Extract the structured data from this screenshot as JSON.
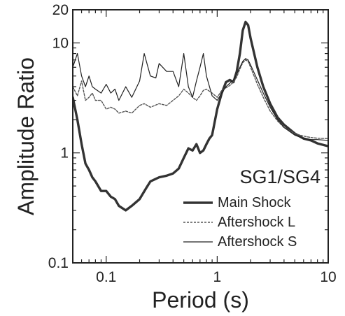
{
  "chart_data": {
    "type": "line",
    "xscale": "log",
    "yscale": "log",
    "xlabel": "Period (s)",
    "ylabel": "Amplitude Ratio",
    "xlim": [
      0.05,
      10
    ],
    "ylim": [
      0.1,
      20
    ],
    "x_ticks": [
      {
        "value": 0.1,
        "label": "0.1"
      },
      {
        "value": 1,
        "label": "1"
      },
      {
        "value": 10,
        "label": "10"
      }
    ],
    "y_ticks": [
      {
        "value": 0.1,
        "label": "0.1"
      },
      {
        "value": 1,
        "label": "1"
      },
      {
        "value": 10,
        "label": "10"
      },
      {
        "value": 20,
        "label": "20"
      }
    ],
    "annotation": "SG1/SG4",
    "grid": false,
    "legend_position": "bottom-right",
    "series": [
      {
        "name": "Main Shock",
        "style": "thick-solid",
        "color": "#333333",
        "points": [
          [
            0.05,
            3.2
          ],
          [
            0.055,
            2.0
          ],
          [
            0.06,
            1.2
          ],
          [
            0.065,
            0.8
          ],
          [
            0.07,
            0.7
          ],
          [
            0.075,
            0.6
          ],
          [
            0.08,
            0.55
          ],
          [
            0.09,
            0.45
          ],
          [
            0.1,
            0.45
          ],
          [
            0.11,
            0.4
          ],
          [
            0.12,
            0.38
          ],
          [
            0.13,
            0.33
          ],
          [
            0.15,
            0.3
          ],
          [
            0.17,
            0.33
          ],
          [
            0.2,
            0.38
          ],
          [
            0.23,
            0.48
          ],
          [
            0.25,
            0.55
          ],
          [
            0.3,
            0.6
          ],
          [
            0.35,
            0.62
          ],
          [
            0.4,
            0.65
          ],
          [
            0.45,
            0.72
          ],
          [
            0.5,
            0.9
          ],
          [
            0.55,
            1.1
          ],
          [
            0.6,
            1.05
          ],
          [
            0.65,
            1.2
          ],
          [
            0.7,
            1.0
          ],
          [
            0.75,
            1.05
          ],
          [
            0.8,
            1.2
          ],
          [
            0.85,
            1.35
          ],
          [
            0.9,
            1.45
          ],
          [
            1.0,
            2.5
          ],
          [
            1.1,
            3.5
          ],
          [
            1.2,
            4.4
          ],
          [
            1.3,
            4.6
          ],
          [
            1.4,
            4.4
          ],
          [
            1.5,
            5.5
          ],
          [
            1.6,
            8.0
          ],
          [
            1.7,
            13.0
          ],
          [
            1.8,
            15.5
          ],
          [
            1.9,
            14.5
          ],
          [
            2.0,
            11.0
          ],
          [
            2.3,
            6.0
          ],
          [
            2.6,
            4.0
          ],
          [
            3.0,
            2.8
          ],
          [
            3.5,
            2.1
          ],
          [
            4.0,
            1.8
          ],
          [
            5.0,
            1.5
          ],
          [
            6.0,
            1.35
          ],
          [
            7.0,
            1.3
          ],
          [
            8.0,
            1.22
          ],
          [
            10.0,
            1.15
          ]
        ]
      },
      {
        "name": "Aftershock L",
        "style": "dashed",
        "color": "#555555",
        "points": [
          [
            0.05,
            4.0
          ],
          [
            0.055,
            3.3
          ],
          [
            0.06,
            4.5
          ],
          [
            0.065,
            3.0
          ],
          [
            0.07,
            3.2
          ],
          [
            0.075,
            3.5
          ],
          [
            0.08,
            3.0
          ],
          [
            0.09,
            3.0
          ],
          [
            0.1,
            2.5
          ],
          [
            0.11,
            2.6
          ],
          [
            0.12,
            2.5
          ],
          [
            0.13,
            2.3
          ],
          [
            0.15,
            2.4
          ],
          [
            0.17,
            2.3
          ],
          [
            0.2,
            2.7
          ],
          [
            0.22,
            2.8
          ],
          [
            0.25,
            2.6
          ],
          [
            0.3,
            2.8
          ],
          [
            0.35,
            2.7
          ],
          [
            0.4,
            3.0
          ],
          [
            0.45,
            3.3
          ],
          [
            0.5,
            3.8
          ],
          [
            0.55,
            3.5
          ],
          [
            0.6,
            3.2
          ],
          [
            0.65,
            3.0
          ],
          [
            0.7,
            3.3
          ],
          [
            0.75,
            3.7
          ],
          [
            0.8,
            3.8
          ],
          [
            0.9,
            3.5
          ],
          [
            1.0,
            3.2
          ],
          [
            1.1,
            3.7
          ],
          [
            1.2,
            3.9
          ],
          [
            1.3,
            4.1
          ],
          [
            1.4,
            4.4
          ],
          [
            1.5,
            4.9
          ],
          [
            1.6,
            5.8
          ],
          [
            1.7,
            6.6
          ],
          [
            1.8,
            7.0
          ],
          [
            1.9,
            6.8
          ],
          [
            2.0,
            6.0
          ],
          [
            2.3,
            4.2
          ],
          [
            2.6,
            3.2
          ],
          [
            3.0,
            2.4
          ],
          [
            3.5,
            1.95
          ],
          [
            4.0,
            1.7
          ],
          [
            5.0,
            1.5
          ],
          [
            6.0,
            1.42
          ],
          [
            7.0,
            1.38
          ],
          [
            8.0,
            1.36
          ],
          [
            10.0,
            1.35
          ]
        ]
      },
      {
        "name": "Aftershock S",
        "style": "thin-solid",
        "color": "#222222",
        "points": [
          [
            0.05,
            6.0
          ],
          [
            0.055,
            8.0
          ],
          [
            0.06,
            5.0
          ],
          [
            0.065,
            4.0
          ],
          [
            0.07,
            5.0
          ],
          [
            0.075,
            4.0
          ],
          [
            0.08,
            3.8
          ],
          [
            0.09,
            3.5
          ],
          [
            0.1,
            4.2
          ],
          [
            0.11,
            3.5
          ],
          [
            0.12,
            3.8
          ],
          [
            0.13,
            3.0
          ],
          [
            0.15,
            4.0
          ],
          [
            0.17,
            3.2
          ],
          [
            0.2,
            4.5
          ],
          [
            0.22,
            8.0
          ],
          [
            0.25,
            5.0
          ],
          [
            0.28,
            4.8
          ],
          [
            0.3,
            6.5
          ],
          [
            0.35,
            5.5
          ],
          [
            0.4,
            5.5
          ],
          [
            0.45,
            4.0
          ],
          [
            0.5,
            8.0
          ],
          [
            0.55,
            4.0
          ],
          [
            0.6,
            3.2
          ],
          [
            0.65,
            4.5
          ],
          [
            0.7,
            6.0
          ],
          [
            0.75,
            8.0
          ],
          [
            0.8,
            5.0
          ],
          [
            0.9,
            3.3
          ],
          [
            1.0,
            3.0
          ],
          [
            1.1,
            3.5
          ],
          [
            1.2,
            4.0
          ],
          [
            1.3,
            4.3
          ],
          [
            1.4,
            4.6
          ],
          [
            1.5,
            5.2
          ],
          [
            1.6,
            6.0
          ],
          [
            1.7,
            6.8
          ],
          [
            1.8,
            7.2
          ],
          [
            1.9,
            7.0
          ],
          [
            2.0,
            6.3
          ],
          [
            2.3,
            4.6
          ],
          [
            2.6,
            3.5
          ],
          [
            3.0,
            2.6
          ],
          [
            3.5,
            2.0
          ],
          [
            4.0,
            1.7
          ],
          [
            5.0,
            1.45
          ],
          [
            6.0,
            1.35
          ],
          [
            7.0,
            1.32
          ],
          [
            8.0,
            1.32
          ],
          [
            10.0,
            1.3
          ]
        ]
      }
    ]
  }
}
